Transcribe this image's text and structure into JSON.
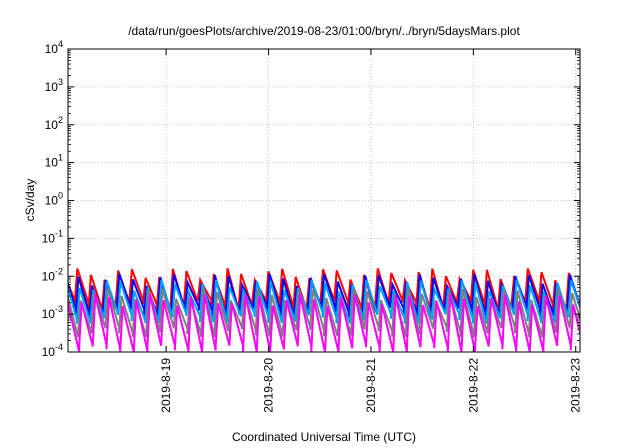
{
  "chart_data": {
    "type": "line",
    "title": "/data/run/goesPlots/archive/2019-08-23/01:00/bryn/../bryn/5daysMars.plot",
    "xlabel": "Coordinated Universal Time (UTC)",
    "ylabel": "cSv/day",
    "y_scale": "log",
    "ylim": [
      0.0001,
      10000
    ],
    "xlim": [
      "2019-08-18 01:00",
      "2019-08-23 01:00"
    ],
    "grid": true,
    "y_ticks": [
      {
        "base": "10",
        "exp": "-4"
      },
      {
        "base": "10",
        "exp": "-3"
      },
      {
        "base": "10",
        "exp": "-2"
      },
      {
        "base": "10",
        "exp": "-1"
      },
      {
        "base": "10",
        "exp": "0"
      },
      {
        "base": "10",
        "exp": "1"
      },
      {
        "base": "10",
        "exp": "2"
      },
      {
        "base": "10",
        "exp": "3"
      },
      {
        "base": "10",
        "exp": "4"
      }
    ],
    "x_ticks": [
      "2019-8-19",
      "2019-8-20",
      "2019-8-21",
      "2019-8-22",
      "2019-8-23"
    ],
    "sawtooth_periods_per_day": 7.5,
    "series": [
      {
        "color": "#ff0000",
        "peak": 0.012,
        "trough": 0.0018
      },
      {
        "color": "#0000ff",
        "peak": 0.0085,
        "trough": 0.0012
      },
      {
        "color": "#00a0ff",
        "peak": 0.006,
        "trough": 0.0008
      },
      {
        "color": "#7f7f7f",
        "peak": 0.0035,
        "trough": 0.00035
      },
      {
        "color": "#ff00ff",
        "peak": 0.0025,
        "trough": 0.00012
      }
    ]
  }
}
